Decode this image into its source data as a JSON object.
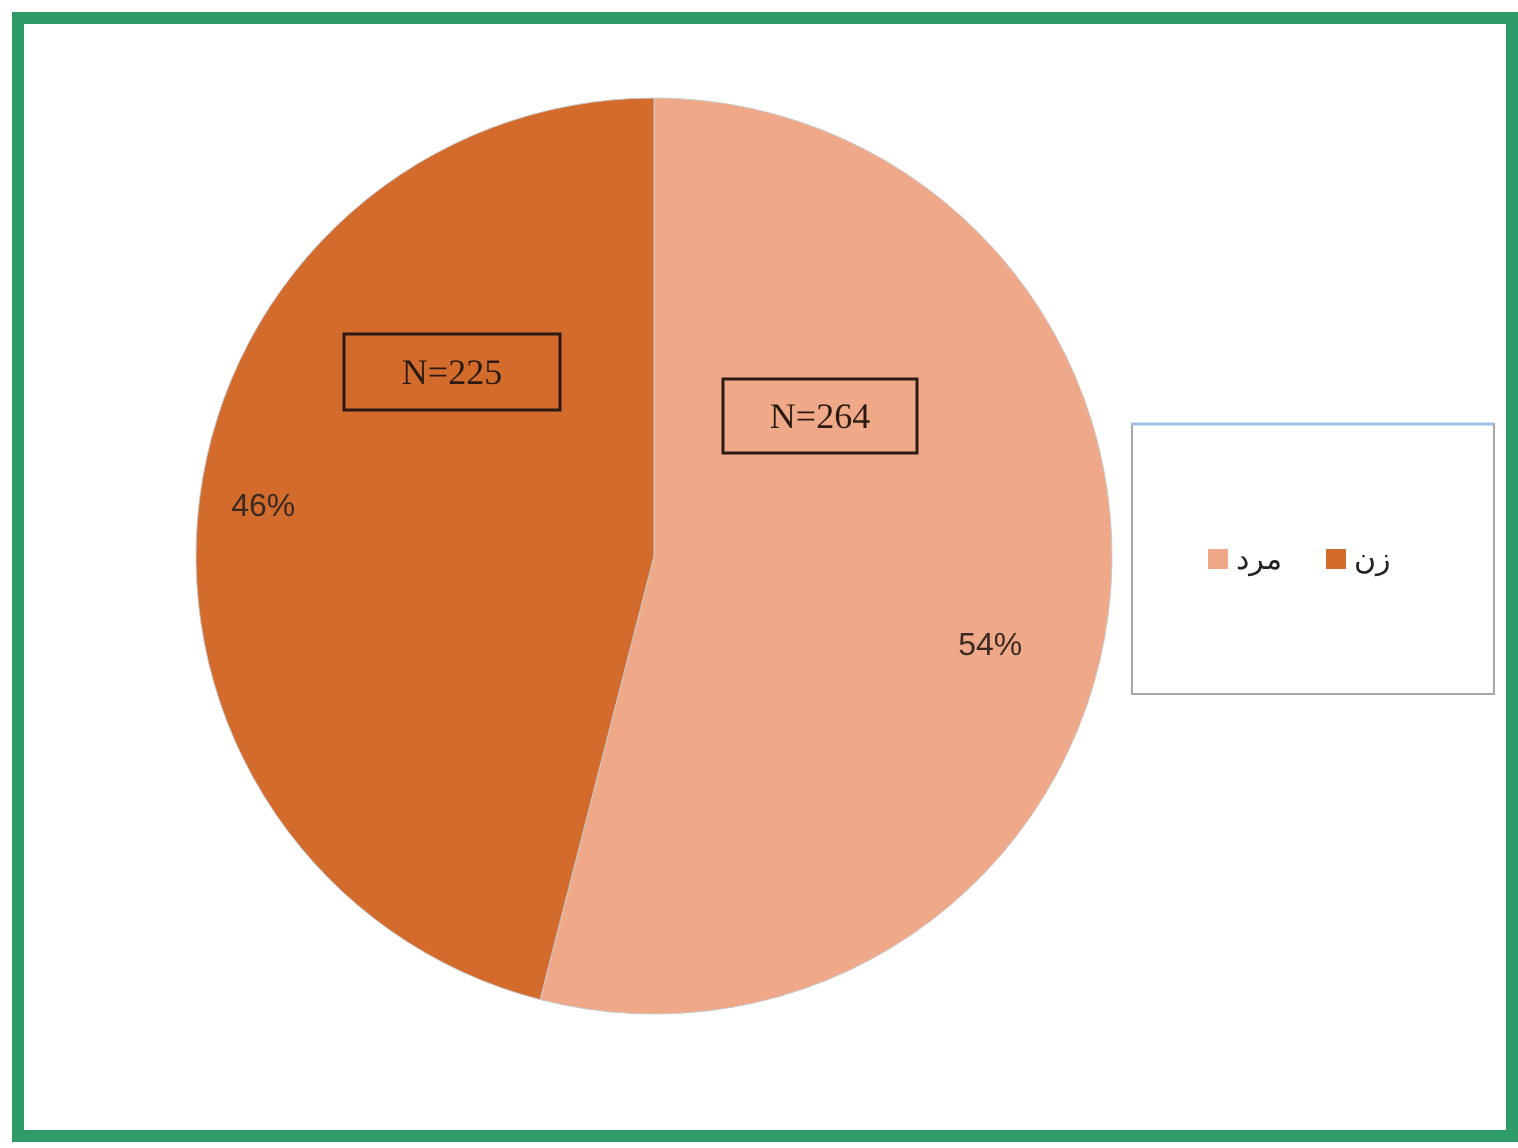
{
  "chart_data": {
    "type": "pie",
    "categories": [
      "مرد",
      "زن"
    ],
    "values": [
      54,
      46
    ],
    "colors": [
      "#f0a988",
      "#d36b2c"
    ],
    "value_labels": [
      "54%",
      "46%"
    ],
    "annotations": [
      "N=264",
      "N=225"
    ],
    "legend": "right"
  }
}
